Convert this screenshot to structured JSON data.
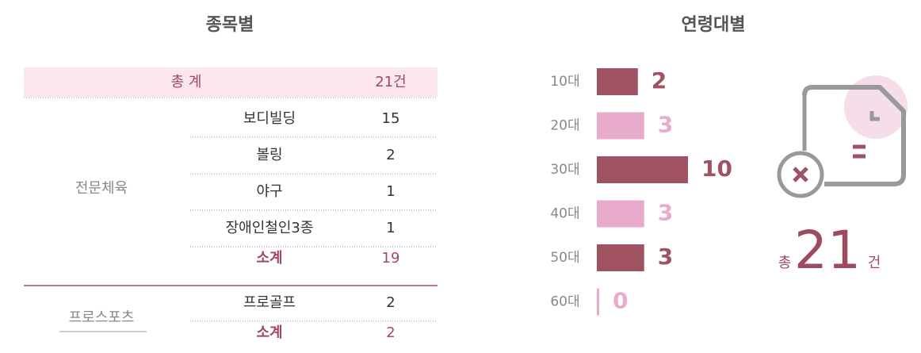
{
  "table": {
    "title": "종목별",
    "header": [
      "총 계",
      "21건"
    ],
    "groups": [
      {
        "name": "전문체육",
        "rows": [
          [
            "보디빌딩",
            15
          ],
          [
            "볼링",
            2
          ],
          [
            "야구",
            1
          ],
          [
            "장애인철인3종",
            1
          ]
        ],
        "subtotal": [
          "소계",
          19
        ]
      },
      {
        "name": "프로스포츠",
        "rows": [
          [
            "프로골프",
            2
          ]
        ],
        "subtotal": [
          "소계",
          2
        ]
      }
    ]
  },
  "chart_data": {
    "type": "bar",
    "title": "연령대별",
    "categories": [
      "10대",
      "20대",
      "30대",
      "40대",
      "50대",
      "60대"
    ],
    "values": [
      2,
      3,
      10,
      3,
      3,
      0
    ],
    "colors": [
      "#9e5262",
      "#e8abcb",
      "#9e5262",
      "#e8abcb",
      "#9e5262",
      "#e8abcb"
    ]
  },
  "total": {
    "prefix": "총",
    "value": 21,
    "unit": "건"
  }
}
